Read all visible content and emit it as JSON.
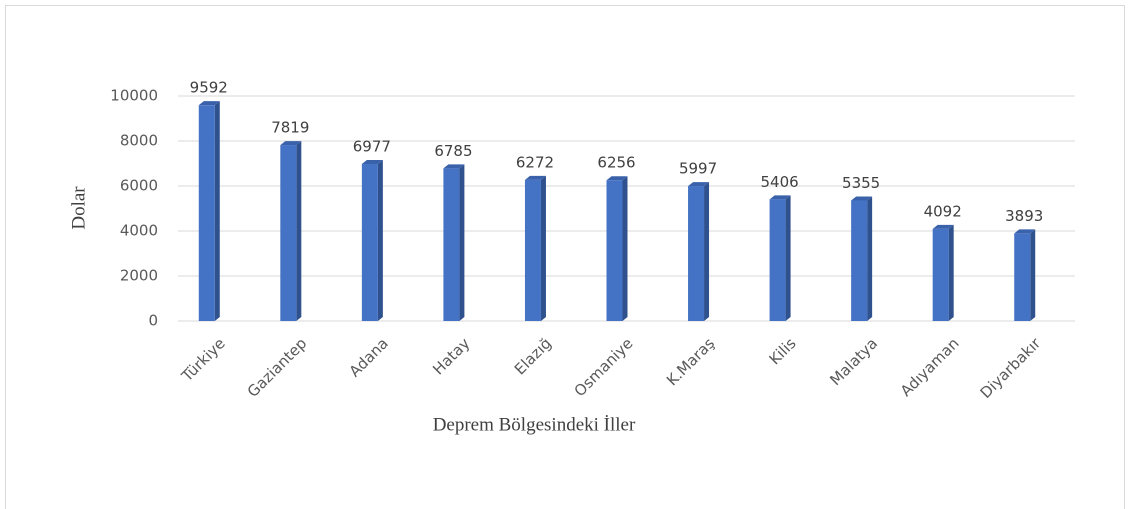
{
  "chart_data": {
    "type": "bar",
    "categories": [
      "Türkiye",
      "Gaziantep",
      "Adana",
      "Hatay",
      "Elazığ",
      "Osmaniye",
      "K.Maraş",
      "Kilis",
      "Malatya",
      "Adıyaman",
      "Diyarbakır"
    ],
    "values": [
      9592,
      7819,
      6977,
      6785,
      6272,
      6256,
      5997,
      5406,
      5355,
      4092,
      3893
    ],
    "color": "#4472c4",
    "ylim": [
      0,
      10000
    ],
    "yticks": [
      0,
      2000,
      4000,
      6000,
      8000,
      10000
    ],
    "grid": true,
    "y_label": "Dolar",
    "x_label": "Deprem Bölgesindeki İller"
  }
}
